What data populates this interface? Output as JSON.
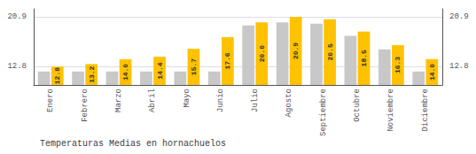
{
  "chart_data": {
    "type": "bar",
    "title": "Temperaturas Medias en hornachuelos",
    "categories": [
      "Enero",
      "Febrero",
      "Marzo",
      "Abril",
      "Mayo",
      "Junio",
      "Julio",
      "Agosto",
      "Septiembre",
      "Octubre",
      "Noviembre",
      "Diciembre"
    ],
    "series": [
      {
        "color": "#C8C8C8",
        "values": [
          12.0,
          12.0,
          12.0,
          12.0,
          12.0,
          12.0,
          19.5,
          20.0,
          19.8,
          17.8,
          15.6,
          12.0
        ]
      },
      {
        "color": "#FFC200",
        "values": [
          12.8,
          13.2,
          14.0,
          14.4,
          15.7,
          17.6,
          20.0,
          20.9,
          20.5,
          18.5,
          16.3,
          14.0
        ],
        "data_labels": true,
        "value_labels": [
          "12.8",
          "13.2",
          "14.0",
          "14.4",
          "15.7",
          "17.6",
          "20.0",
          "20.9",
          "20.5",
          "18.5",
          "16.3",
          "14.0"
        ]
      }
    ],
    "ylim": [
      9.8,
      22.2
    ],
    "yticks": [
      12.8,
      20.9
    ],
    "y2lim": [
      9.8,
      22.2
    ],
    "y2ticks": [
      12.8,
      20.9
    ],
    "grid": true
  }
}
